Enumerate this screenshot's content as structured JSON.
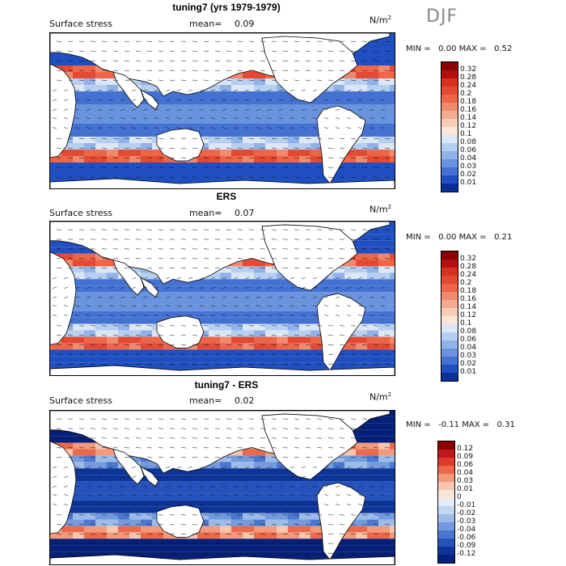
{
  "season": "DJF",
  "panels": [
    {
      "title": "tuning7 (yrs 1979-1979)",
      "label": "Surface stress",
      "mean_label": "mean=",
      "mean_value": "0.09",
      "units": "N/m",
      "units_exp": "2",
      "min_label": "MIN =",
      "min_value": "0.00",
      "max_label": "MAX =",
      "max_value": "0.52",
      "colorbar_ticks": [
        "0.32",
        "0.28",
        "0.24",
        "0.2",
        "0.18",
        "0.16",
        "0.14",
        "0.12",
        "0.1",
        "0.08",
        "0.06",
        "0.04",
        "0.03",
        "0.02",
        "0.01"
      ],
      "colorbar_colors": [
        "#8b0000",
        "#b50f0f",
        "#d7301f",
        "#e34a33",
        "#ef6548",
        "#f08a6e",
        "#f4ab90",
        "#f8cdb8",
        "#fbe6da",
        "#dbe6f6",
        "#b6cff0",
        "#8fb2e8",
        "#6a93de",
        "#4472d2",
        "#1f4fc0",
        "#0b2f9a"
      ]
    },
    {
      "title": "ERS",
      "label": "Surface stress",
      "mean_label": "mean=",
      "mean_value": "0.07",
      "units": "N/m",
      "units_exp": "2",
      "min_label": "MIN =",
      "min_value": "0.00",
      "max_label": "MAX =",
      "max_value": "0.21",
      "colorbar_ticks": [
        "0.32",
        "0.28",
        "0.24",
        "0.2",
        "0.18",
        "0.16",
        "0.14",
        "0.12",
        "0.1",
        "0.08",
        "0.06",
        "0.04",
        "0.03",
        "0.02",
        "0.01"
      ],
      "colorbar_colors": [
        "#8b0000",
        "#b50f0f",
        "#d7301f",
        "#e34a33",
        "#ef6548",
        "#f08a6e",
        "#f4ab90",
        "#f8cdb8",
        "#fbe6da",
        "#dbe6f6",
        "#b6cff0",
        "#8fb2e8",
        "#6a93de",
        "#4472d2",
        "#1f4fc0",
        "#0b2f9a"
      ]
    },
    {
      "title": "tuning7 - ERS",
      "label": "Surface stress",
      "mean_label": "mean=",
      "mean_value": "0.02",
      "units": "N/m",
      "units_exp": "2",
      "min_label": "MIN =",
      "min_value": "-0.11",
      "max_label": "MAX =",
      "max_value": "0.31",
      "colorbar_ticks": [
        "0.12",
        "0.09",
        "0.06",
        "0.04",
        "0.03",
        "0.01",
        "0",
        "-0.01",
        "-0.02",
        "-0.03",
        "-0.04",
        "-0.06",
        "-0.09",
        "-0.12"
      ],
      "colorbar_colors": [
        "#8b0000",
        "#c0171c",
        "#de3b2c",
        "#ec6a4c",
        "#f39a7c",
        "#f8c6ae",
        "#fbe4d8",
        "#e3ecf8",
        "#c4d6f2",
        "#9dbbe9",
        "#739adc",
        "#4c77cf",
        "#2653bb",
        "#0d3499",
        "#061f78"
      ]
    }
  ]
}
